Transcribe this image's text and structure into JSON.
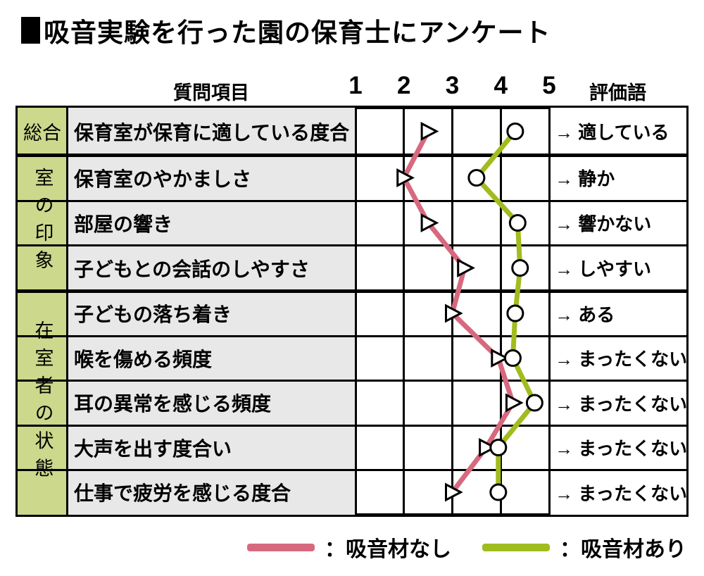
{
  "title": "吸音実験を行った園の保育士にアンケート",
  "header": {
    "question_col": "質問項目",
    "eval_col": "評価語"
  },
  "legend": {
    "no_material": "：吸音材なし",
    "with_material": "：吸音材あり"
  },
  "colors": {
    "no_material": "#d7697f",
    "with_material": "#a0bc1e",
    "group_bg": "#ccd88b",
    "question_bg": "#e8e8e8",
    "border": "#000000"
  },
  "chart_data": {
    "type": "line",
    "note": "horizontal survey profile chart; each row is a question, x axis is rating 1-5",
    "x_ticks": [
      "1",
      "2",
      "3",
      "4",
      "5"
    ],
    "x_range": [
      1,
      5
    ],
    "grid": true,
    "groups": [
      {
        "label": "総合",
        "vertical": false,
        "span": 1
      },
      {
        "label": "室の印象",
        "vertical": true,
        "span": 3
      },
      {
        "label": "在室者の状態",
        "vertical": true,
        "span": 5
      }
    ],
    "rows": [
      {
        "question": "保育室が保育に適している度合",
        "eval": "→ 適している"
      },
      {
        "question": "保育室のやかましさ",
        "eval": "→ 静か"
      },
      {
        "question": "部屋の響き",
        "eval": "→ 響かない"
      },
      {
        "question": "子どもとの会話のしやすさ",
        "eval": "→ しやすい"
      },
      {
        "question": "子どもの落ち着き",
        "eval": "→ ある"
      },
      {
        "question": "喉を傷める頻度",
        "eval": "→ まったくない"
      },
      {
        "question": "耳の異常を感じる頻度",
        "eval": "→ まったくない"
      },
      {
        "question": "大声を出す度合い",
        "eval": "→ まったくない"
      },
      {
        "question": "仕事で疲労を感じる度合",
        "eval": "→ まったくない"
      }
    ],
    "series": [
      {
        "name": "吸音材なし",
        "marker": "triangle",
        "color": "#d7697f",
        "values": [
          2.5,
          2.0,
          2.5,
          3.25,
          3.0,
          3.95,
          4.25,
          3.7,
          3.0
        ]
      },
      {
        "name": "吸音材あり",
        "marker": "circle",
        "color": "#a0bc1e",
        "values": [
          4.3,
          3.5,
          4.35,
          4.4,
          4.3,
          4.25,
          4.7,
          3.95,
          3.95
        ]
      }
    ]
  }
}
